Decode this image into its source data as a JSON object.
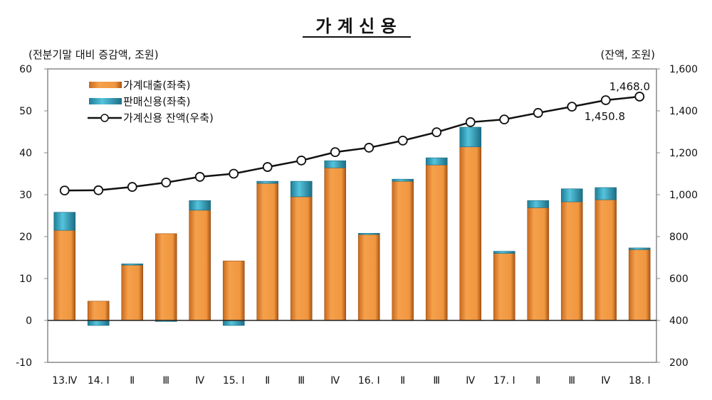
{
  "chart_data": {
    "type": "bar",
    "title": "가 계 신 용",
    "left_axis_label": "(전분기말 대비 증감액, 조원)",
    "right_axis_label": "(잔액, 조원)",
    "ylim": [
      -10,
      60
    ],
    "yticks": [
      "-10",
      "0",
      "10",
      "20",
      "30",
      "40",
      "50",
      "60"
    ],
    "y2lim": [
      200,
      1600
    ],
    "y2ticks": [
      "200",
      "400",
      "600",
      "800",
      "1,000",
      "1,200",
      "1,400",
      "1,600"
    ],
    "categories": [
      "13.Ⅳ",
      "14. Ⅰ",
      "Ⅱ",
      "Ⅲ",
      "Ⅳ",
      "15. Ⅰ",
      "Ⅱ",
      "Ⅲ",
      "Ⅳ",
      "16. Ⅰ",
      "Ⅱ",
      "Ⅲ",
      "Ⅳ",
      "17. Ⅰ",
      "Ⅱ",
      "Ⅲ",
      "Ⅳ",
      "18. Ⅰ"
    ],
    "series": [
      {
        "name": "가계대출(좌축)",
        "type": "stacked-bar",
        "axis": "left",
        "color": "#f0963f",
        "values": [
          21.5,
          4.6,
          13.2,
          20.7,
          26.3,
          14.2,
          32.7,
          29.5,
          36.4,
          20.5,
          33.2,
          37.1,
          41.4,
          16.0,
          26.9,
          28.3,
          28.8,
          16.9
        ]
      },
      {
        "name": "판매신용(좌축)",
        "type": "stacked-bar",
        "axis": "left",
        "color": "#3fb0cc",
        "values": [
          4.3,
          -1.2,
          0.3,
          -0.2,
          2.3,
          -1.2,
          0.5,
          3.7,
          1.7,
          0.3,
          0.5,
          1.7,
          4.7,
          0.5,
          1.7,
          3.1,
          2.9,
          0.4
        ]
      },
      {
        "name": "가계신용 잔액(우축)",
        "type": "line",
        "axis": "right",
        "color": "#111111",
        "values": [
          1020,
          1021,
          1037,
          1058,
          1085,
          1100,
          1132,
          1163,
          1203,
          1224,
          1258,
          1298,
          1346,
          1359,
          1390,
          1420,
          1450.8,
          1468.0
        ]
      }
    ],
    "annotations": [
      "1,468.0",
      "1,450.8"
    ],
    "legend": "top-left",
    "grid": false
  }
}
